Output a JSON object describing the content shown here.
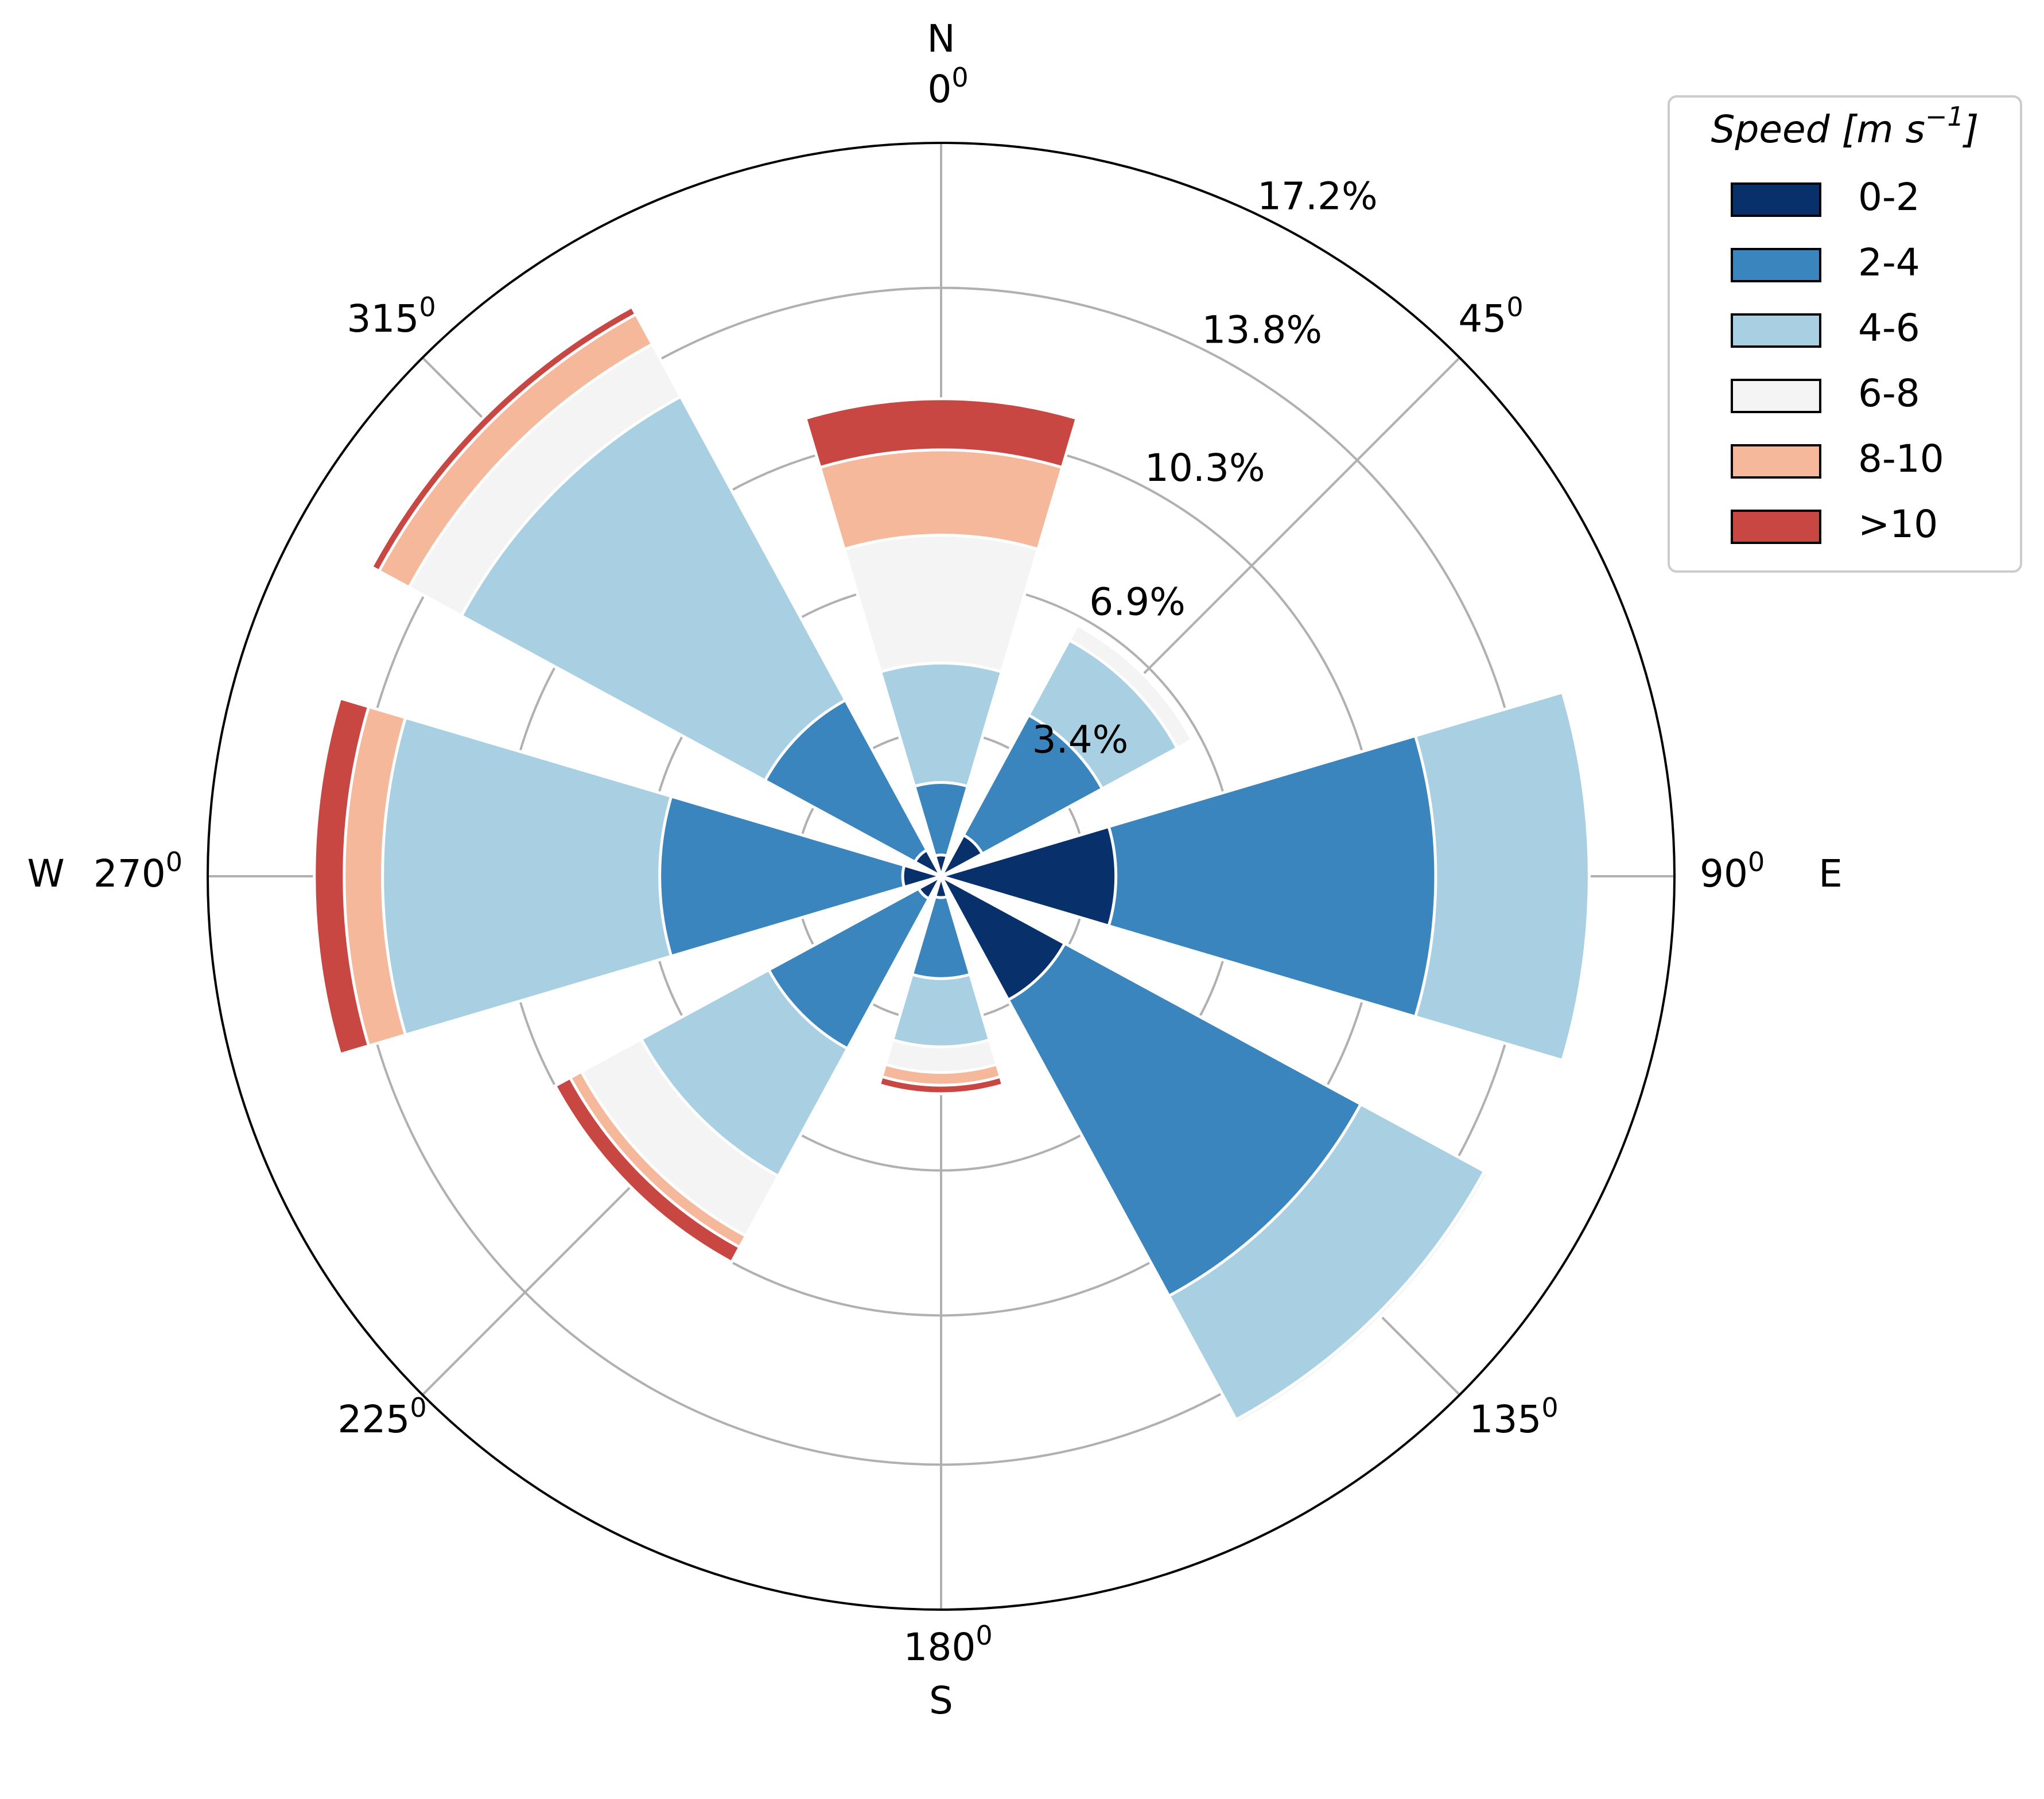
{
  "chart_data": {
    "type": "polar-stacked-bar",
    "sector_width_deg": 33,
    "directions_deg": [
      0,
      45,
      90,
      135,
      180,
      225,
      270,
      315
    ],
    "angle_tick_labels": [
      {
        "angle": 0,
        "num": "0",
        "sup": "0",
        "compass": "N"
      },
      {
        "angle": 45,
        "num": "45",
        "sup": "0",
        "compass": ""
      },
      {
        "angle": 90,
        "num": "90",
        "sup": "0",
        "compass": "E"
      },
      {
        "angle": 135,
        "num": "135",
        "sup": "0",
        "compass": ""
      },
      {
        "angle": 180,
        "num": "180",
        "sup": "0",
        "compass": "S"
      },
      {
        "angle": 225,
        "num": "225",
        "sup": "0",
        "compass": ""
      },
      {
        "angle": 270,
        "num": "270",
        "sup": "0",
        "compass": "W"
      },
      {
        "angle": 315,
        "num": "315",
        "sup": "0",
        "compass": ""
      }
    ],
    "radial_ticks": [
      3.4,
      6.9,
      10.3,
      13.8,
      17.2
    ],
    "radial_tick_labels": [
      "3.4%",
      "6.9%",
      "10.3%",
      "13.8%",
      "17.2%"
    ],
    "rmax": 17.2,
    "legend": {
      "title": "Speed [m s",
      "title_sup": "−1",
      "title_close": "]",
      "entries": [
        "0-2",
        "2-4",
        "4-6",
        "6-8",
        "8-10",
        ">10"
      ]
    },
    "colors": [
      "#08306b",
      "#3a85bd",
      "#a9cfe3",
      "#f4f4f4",
      "#f5b89a",
      "#c84743"
    ],
    "series": [
      {
        "name": "0-2",
        "values": [
          0.5,
          1.1,
          4.1,
          3.3,
          0.5,
          0.6,
          0.9,
          0.7
        ]
      },
      {
        "name": "2-4",
        "values": [
          2.2,
          4.3,
          11.6,
          11.2,
          2.4,
          4.6,
          6.6,
          4.7
        ]
      },
      {
        "name": "4-6",
        "values": [
          5.0,
          6.3,
          15.2,
          14.5,
          4.0,
          8.0,
          13.1,
          12.8
        ]
      },
      {
        "name": "6-8",
        "values": [
          8.0,
          6.7,
          15.2,
          14.6,
          4.6,
          9.6,
          13.1,
          14.2
        ]
      },
      {
        "name": "8-10",
        "values": [
          10.0,
          6.7,
          15.2,
          14.6,
          4.9,
          9.9,
          14.0,
          15.0
        ]
      },
      {
        "name": ">10",
        "values": [
          11.2,
          6.7,
          15.2,
          14.6,
          5.1,
          10.3,
          14.7,
          15.2
        ]
      }
    ]
  }
}
